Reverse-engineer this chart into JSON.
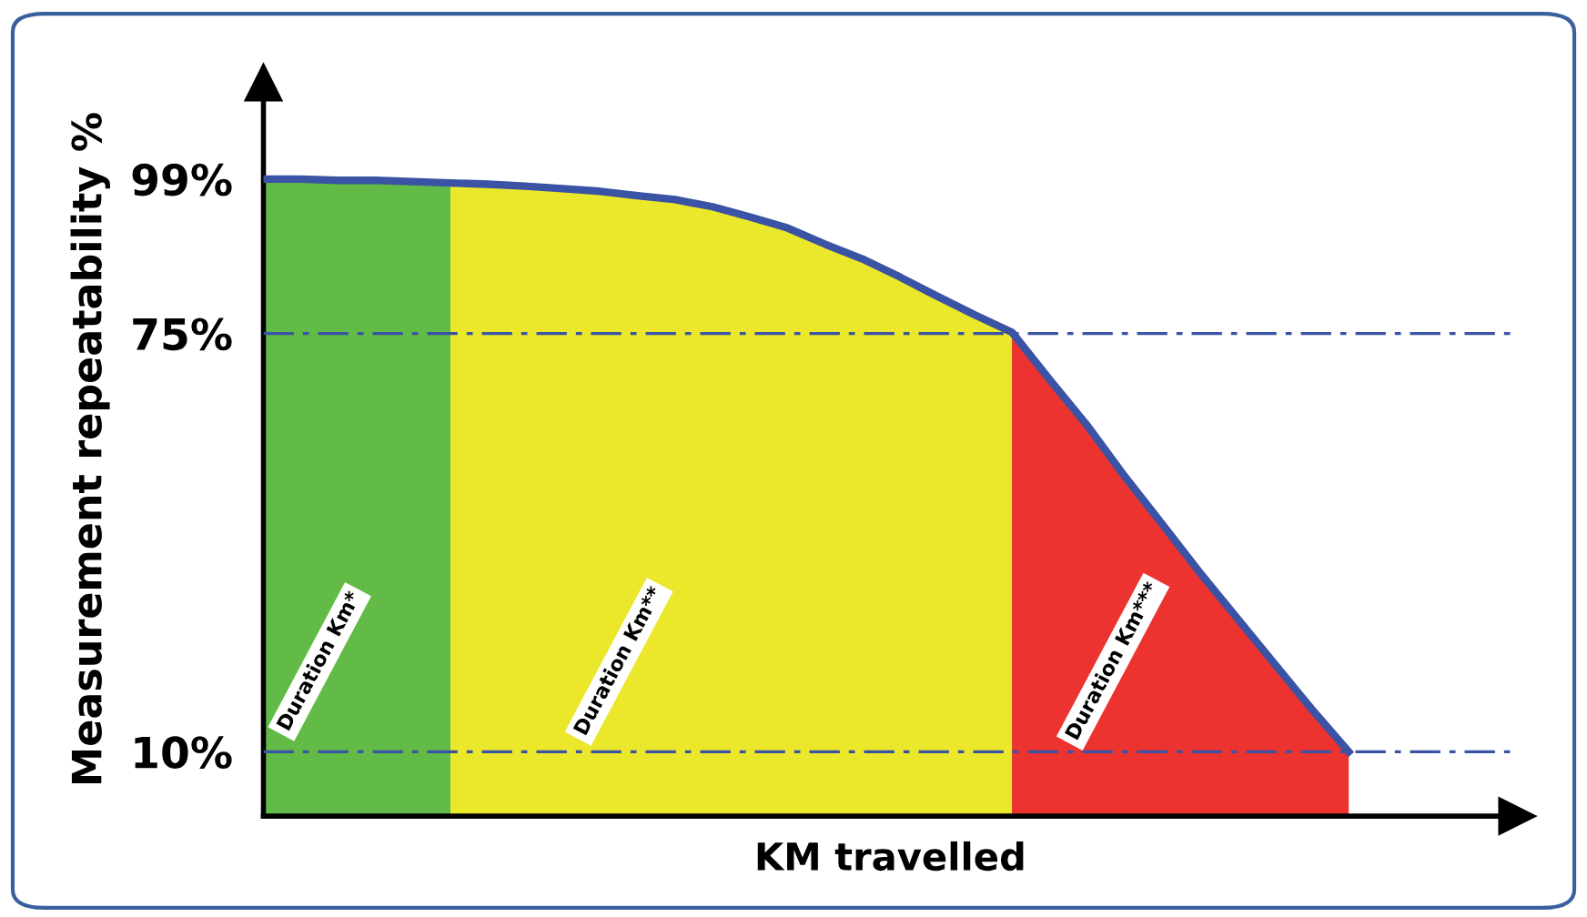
{
  "chart_data": {
    "type": "area",
    "xlabel": "KM travelled",
    "ylabel": "Measurement repeatability %",
    "categories": [
      null,
      null,
      null,
      null,
      null,
      null,
      null,
      null,
      null,
      null,
      null,
      null,
      null,
      null,
      null,
      null,
      null,
      null,
      null,
      null,
      null,
      null,
      null,
      null,
      null,
      null,
      null,
      null,
      null,
      null
    ],
    "series": [
      {
        "color": "#62bb46",
        "values": [
          99,
          99,
          98.8,
          98.8,
          98.6,
          98.4,
          null,
          null,
          null,
          null,
          null,
          null,
          null,
          null,
          null,
          null,
          null,
          null,
          null,
          null,
          null,
          null,
          null,
          null,
          null,
          null,
          null,
          null,
          null,
          null
        ]
      },
      {
        "color": "#ebe72b",
        "values": [
          null,
          null,
          null,
          null,
          null,
          98.4,
          98.2,
          97.9,
          97.5,
          97.1,
          96.4,
          95.8,
          94.7,
          93.1,
          91.4,
          88.9,
          86.6,
          83.8,
          80.8,
          77.9,
          75.2,
          null,
          null,
          null,
          null,
          null,
          null,
          null,
          null,
          null
        ]
      },
      {
        "color": "#ec3330",
        "values": [
          null,
          null,
          null,
          null,
          null,
          null,
          null,
          null,
          null,
          null,
          null,
          null,
          null,
          null,
          null,
          null,
          null,
          null,
          null,
          null,
          75.2,
          67.9,
          60.8,
          52.9,
          45.5,
          38,
          30.9,
          23.8,
          16.7,
          10
        ]
      },
      {
        "type": "line",
        "color": "#3a53a4",
        "values": [
          99,
          99,
          98.8,
          98.8,
          98.6,
          98.4,
          98.2,
          97.9,
          97.5,
          97.1,
          96.4,
          95.8,
          94.7,
          93.1,
          91.4,
          88.9,
          86.6,
          83.8,
          80.8,
          77.9,
          75.2,
          67.9,
          60.8,
          52.9,
          45.5,
          38,
          30.9,
          23.8,
          16.7,
          10
        ]
      }
    ],
    "ylim": [
      0,
      114
    ],
    "yticks": [
      {
        "value": 10,
        "label": "10%"
      },
      {
        "value": 75,
        "label": "75%"
      },
      {
        "value": 99,
        "label": "99%"
      }
    ],
    "ref_lines": [
      {
        "axis": "y",
        "value": 75,
        "color": "#3a53a4",
        "line_style": "dashed"
      },
      {
        "axis": "y",
        "value": 10,
        "color": "#3a53a4",
        "line_style": "dashed"
      }
    ],
    "annotations": [
      "Duration Km*",
      "Duration Km**",
      "Duration Km***"
    ],
    "tick_labels": "y",
    "grid": false,
    "legend": false
  }
}
